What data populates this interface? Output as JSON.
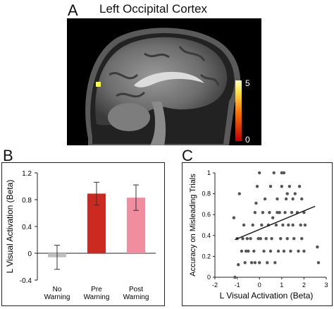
{
  "panel_a": {
    "letter": "A",
    "title": "Left Occipital Cortex",
    "colorbar": {
      "max_label": "5",
      "min_label": "0"
    }
  },
  "panel_b": {
    "letter": "B"
  },
  "panel_c": {
    "letter": "C"
  },
  "chart_data": [
    {
      "type": "bar",
      "ylabel": "L Visual Activation (Beta)",
      "xlabel": "",
      "ylim": [
        -0.4,
        1.2
      ],
      "yticks": [
        "1.2",
        "0.8",
        "0.4",
        "0",
        "-0.4"
      ],
      "categories": [
        [
          "No",
          "Warning"
        ],
        [
          "Pre",
          "Warning"
        ],
        [
          "Post",
          "Warning"
        ]
      ],
      "values": [
        -0.06,
        0.89,
        0.83
      ],
      "errors": [
        0.18,
        0.17,
        0.19
      ],
      "colors": [
        "#bfbfbf",
        "#cc2a20",
        "#f08ea0"
      ]
    },
    {
      "type": "scatter",
      "xlabel": "L Visual Activation (Beta)",
      "ylabel": "Accuracy on Misleading Trials",
      "xlim": [
        -2,
        3
      ],
      "ylim": [
        0,
        1
      ],
      "xticks": [
        "-2",
        "-1",
        "0",
        "1",
        "2",
        "3"
      ],
      "yticks": [
        "1",
        "0.8",
        "0.6",
        "0.4",
        "0.2",
        "0"
      ],
      "point_color": "#555555",
      "points": [
        [
          -1.1,
          0.0
        ],
        [
          -1.15,
          0.57
        ],
        [
          -1.0,
          0.37
        ],
        [
          -0.95,
          0.12
        ],
        [
          -0.9,
          0.8
        ],
        [
          -0.8,
          0.25
        ],
        [
          -0.75,
          0.37
        ],
        [
          -0.7,
          0.5
        ],
        [
          -0.65,
          0.14
        ],
        [
          -0.6,
          0.25
        ],
        [
          -0.55,
          0.37
        ],
        [
          -0.5,
          0.25
        ],
        [
          -0.4,
          0.37
        ],
        [
          -0.35,
          0.14
        ],
        [
          -0.3,
          0.5
        ],
        [
          -0.25,
          0.25
        ],
        [
          -0.2,
          0.62
        ],
        [
          -0.15,
          0.71
        ],
        [
          -0.1,
          0.87
        ],
        [
          -0.05,
          0.37
        ],
        [
          0.0,
          1.0
        ],
        [
          0.0,
          0.14
        ],
        [
          0.05,
          0.37
        ],
        [
          0.1,
          0.5
        ],
        [
          0.15,
          0.62
        ],
        [
          0.2,
          0.25
        ],
        [
          0.25,
          0.75
        ],
        [
          0.3,
          0.37
        ],
        [
          0.35,
          0.14
        ],
        [
          0.4,
          0.5
        ],
        [
          0.45,
          0.62
        ],
        [
          0.5,
          0.87
        ],
        [
          0.5,
          0.25
        ],
        [
          0.55,
          0.37
        ],
        [
          0.6,
          0.57
        ],
        [
          0.65,
          1.0
        ],
        [
          0.7,
          0.14
        ],
        [
          0.75,
          0.5
        ],
        [
          0.8,
          0.75
        ],
        [
          0.85,
          0.25
        ],
        [
          0.9,
          0.62
        ],
        [
          0.95,
          0.37
        ],
        [
          1.0,
          0.87
        ],
        [
          1.0,
          1.0
        ],
        [
          1.05,
          0.5
        ],
        [
          1.1,
          0.25
        ],
        [
          1.1,
          1.0
        ],
        [
          1.15,
          0.62
        ],
        [
          1.2,
          0.75
        ],
        [
          1.25,
          0.37
        ],
        [
          1.3,
          0.5
        ],
        [
          1.35,
          0.87
        ],
        [
          1.4,
          0.25
        ],
        [
          1.45,
          0.62
        ],
        [
          1.5,
          0.5
        ],
        [
          1.5,
          0.75
        ],
        [
          1.55,
          0.37
        ],
        [
          1.6,
          0.8
        ],
        [
          1.7,
          0.62
        ],
        [
          1.75,
          0.25
        ],
        [
          1.8,
          0.87
        ],
        [
          1.85,
          0.5
        ],
        [
          1.9,
          0.75
        ],
        [
          1.9,
          0.37
        ],
        [
          2.0,
          0.62
        ],
        [
          2.0,
          0.25
        ],
        [
          2.05,
          0.5
        ],
        [
          2.6,
          0.29
        ],
        [
          2.65,
          0.14
        ],
        [
          -0.2,
          0.14
        ],
        [
          0.8,
          0.62
        ],
        [
          1.25,
          0.8
        ]
      ],
      "fit_line": [
        [
          -1.1,
          0.36
        ],
        [
          2.5,
          0.68
        ]
      ]
    }
  ]
}
